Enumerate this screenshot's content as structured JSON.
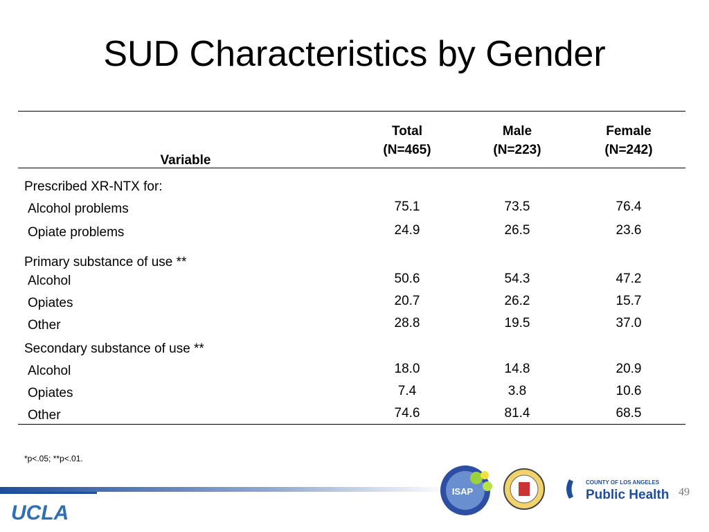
{
  "title": "SUD Characteristics by Gender",
  "table": {
    "header": {
      "variable": "Variable",
      "columns": [
        [
          "Total",
          "(N=465)"
        ],
        [
          "Male",
          "(N=223)"
        ],
        [
          "Female",
          "(N=242)"
        ]
      ]
    },
    "sections": [
      {
        "label": "Prescribed XR-NTX for:",
        "rows": [
          {
            "label": "Alcohol problems",
            "values": [
              "75.1",
              "73.5",
              "76.4"
            ]
          },
          {
            "label": "Opiate problems",
            "values": [
              "24.9",
              "26.5",
              "23.6"
            ]
          }
        ]
      },
      {
        "label": "Primary substance of use **",
        "rows": [
          {
            "label": "Alcohol",
            "values": [
              "50.6",
              "54.3",
              "47.2"
            ]
          },
          {
            "label": "Opiates",
            "values": [
              "20.7",
              "26.2",
              "15.7"
            ]
          },
          {
            "label": "Other",
            "values": [
              "28.8",
              "19.5",
              "37.0"
            ]
          }
        ]
      },
      {
        "label": "Secondary substance of use **",
        "rows": [
          {
            "label": "Alcohol",
            "values": [
              "18.0",
              "14.8",
              "20.9"
            ]
          },
          {
            "label": "Opiates",
            "values": [
              "7.4",
              "3.8",
              "10.6"
            ]
          },
          {
            "label": "Other",
            "values": [
              "74.6",
              "81.4",
              "68.5"
            ]
          }
        ]
      }
    ]
  },
  "footnote": "*p<.05; **p<.01.",
  "footer": {
    "ucla": "UCLA",
    "isap": "ISAP",
    "county": "COUNTY OF LOS ANGELES",
    "public_health": "Public Health",
    "page_number": "49"
  }
}
